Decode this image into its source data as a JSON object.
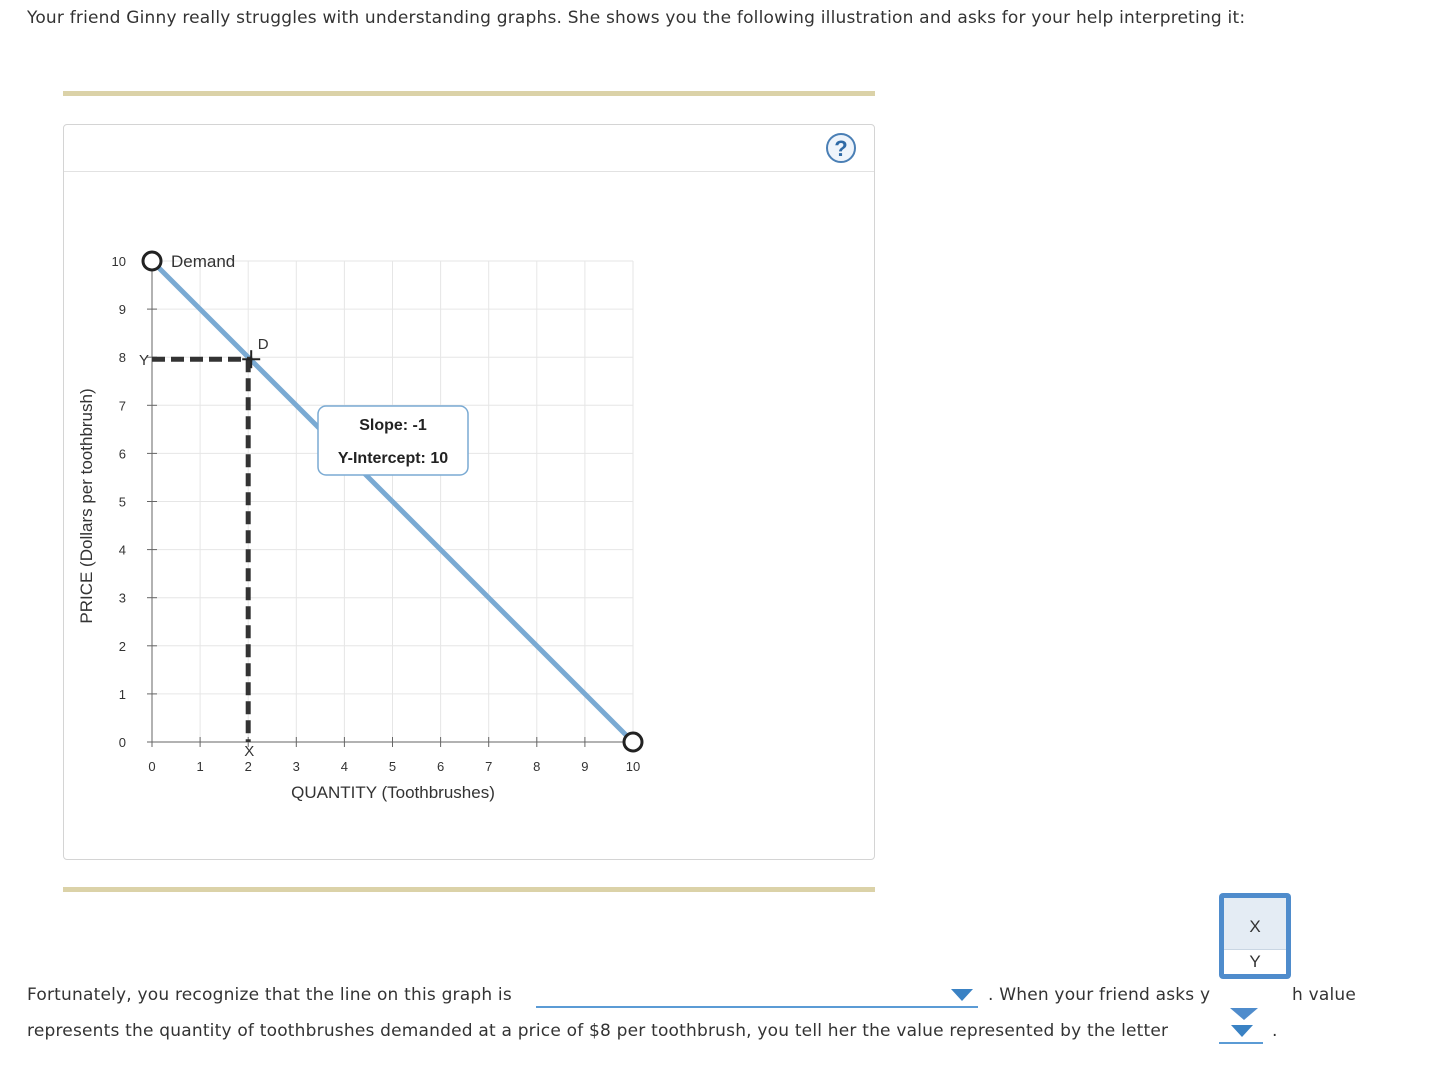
{
  "intro_text": "Your friend Ginny really struggles with understanding graphs. She shows you the following illustration and asks for your help interpreting it:",
  "help_label": "?",
  "colors": {
    "demand_line": "#7aaad3",
    "dashed": "#333333",
    "grid": "#e6e6e6",
    "rule": "#dbd2a8",
    "accent": "#4f8ccc"
  },
  "chart_data": {
    "type": "line",
    "xlabel": "QUANTITY (Toothbrushes)",
    "ylabel": "PRICE (Dollars per toothbrush)",
    "xlim": [
      0,
      10
    ],
    "ylim": [
      0,
      10
    ],
    "x_ticks": [
      "0",
      "1",
      "2",
      "3",
      "4",
      "5",
      "6",
      "7",
      "8",
      "9",
      "10"
    ],
    "y_ticks": [
      "0",
      "1",
      "2",
      "3",
      "4",
      "5",
      "6",
      "7",
      "8",
      "9",
      "10"
    ],
    "grid": true,
    "series": [
      {
        "name": "Demand",
        "x": [
          0,
          10
        ],
        "y": [
          10,
          0
        ]
      }
    ],
    "point": {
      "label": "D",
      "x": 2,
      "y": 8
    },
    "marker_labels": {
      "x": "X",
      "y": "Y"
    },
    "tooltip": {
      "slope": "Slope: -1",
      "intercept": "Y-Intercept: 10"
    }
  },
  "sentence": {
    "part1": "Fortunately, you recognize that the line on this graph is",
    "part2": ". When your friend asks y",
    "part3": "h value",
    "part4": "represents the quantity of toothbrushes demanded at a price of $8 per toothbrush, you tell her the value represented by the letter",
    "part5": "."
  },
  "dropdown_options": [
    "X",
    "Y"
  ]
}
